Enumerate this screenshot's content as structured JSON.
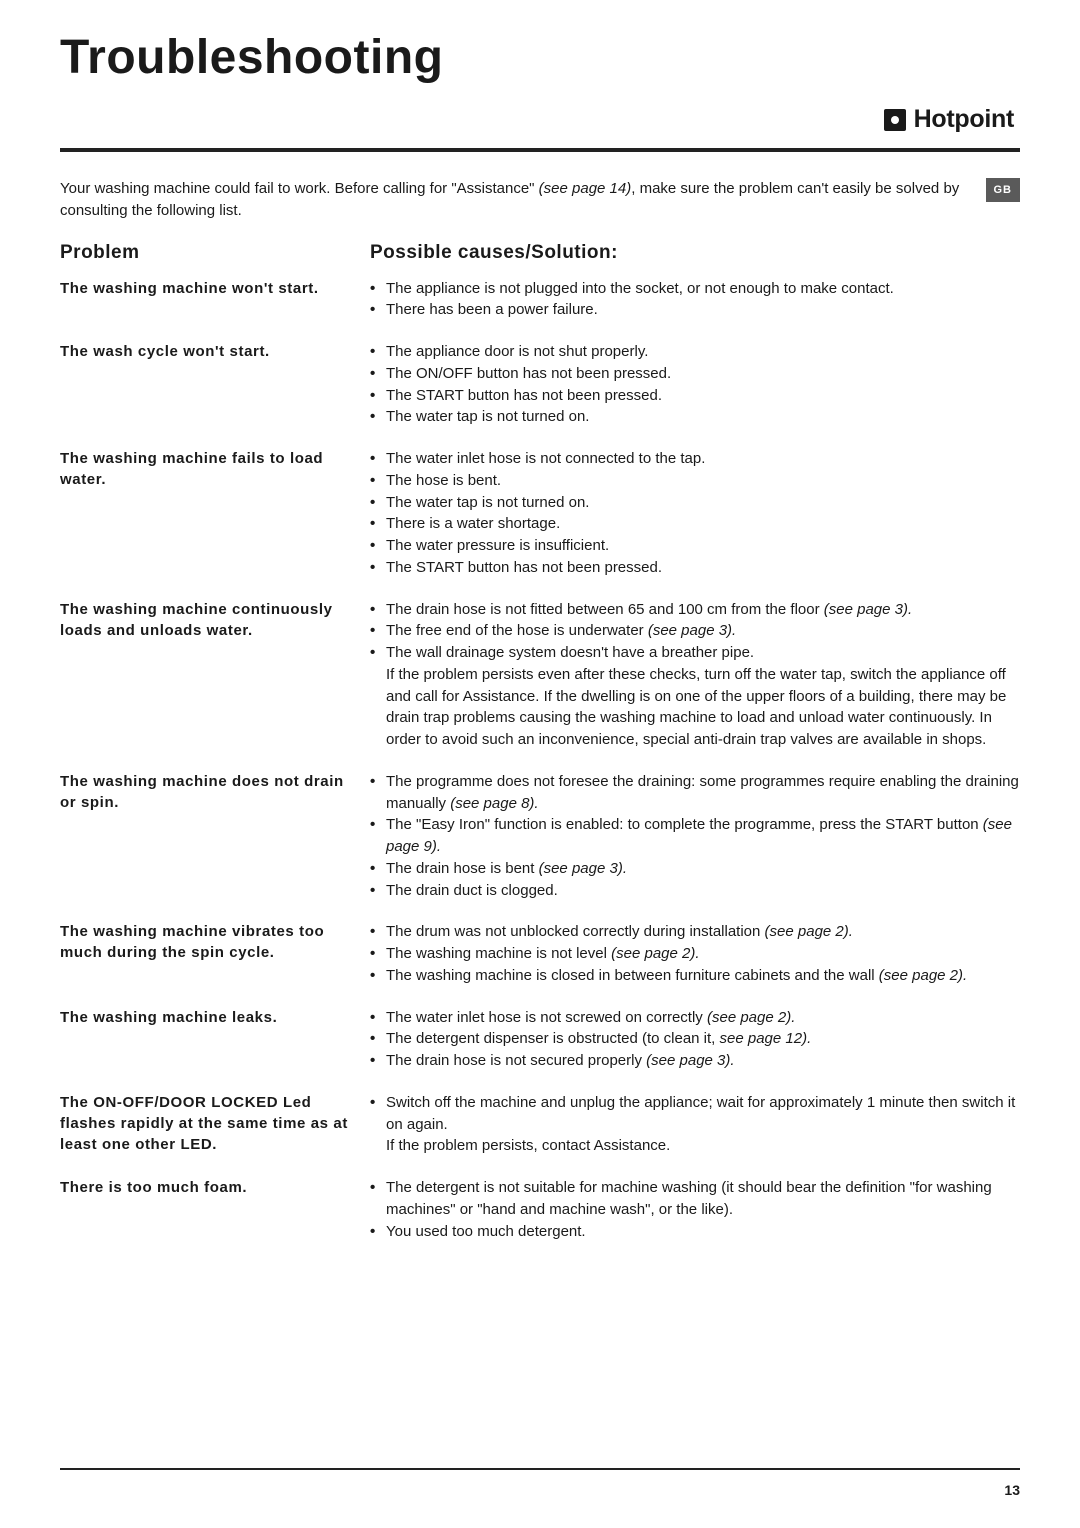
{
  "page": {
    "title": "Troubleshooting",
    "brand": "Hotpoint",
    "lang_badge": "GB",
    "intro_part1": "Your washing machine could fail to work. Before calling for \"Assistance\" ",
    "intro_ref": "(see page 14)",
    "intro_part2": ", make sure the problem can't easily be solved by consulting the following list.",
    "headers": {
      "problem": "Problem",
      "solution": "Possible causes/Solution:"
    },
    "page_number": "13"
  },
  "rows": [
    {
      "problem": "The washing machine won't start.",
      "items": [
        {
          "text": "The appliance is not plugged into the socket, or not enough to make contact."
        },
        {
          "text": "There has been a power failure."
        }
      ]
    },
    {
      "problem": "The wash cycle won't start.",
      "items": [
        {
          "text": "The appliance door is not shut properly."
        },
        {
          "text": "The ON/OFF button has not been pressed."
        },
        {
          "text": "The START button has not been pressed."
        },
        {
          "text": "The water tap is not turned on."
        }
      ]
    },
    {
      "problem": "The washing machine fails to load water.",
      "items": [
        {
          "text": "The water inlet hose is not connected to the tap."
        },
        {
          "text": "The hose is bent."
        },
        {
          "text": "The water tap is not turned on."
        },
        {
          "text": "There is a water shortage."
        },
        {
          "text": "The water pressure is insufficient."
        },
        {
          "text": "The START button has not been pressed."
        }
      ]
    },
    {
      "problem": "The washing machine continuously loads and unloads water.",
      "items": [
        {
          "text": "The drain hose is not fitted between 65 and 100 cm from the floor ",
          "ref": "(see page 3)."
        },
        {
          "text": "The free end of the hose is underwater ",
          "ref": "(see page 3)."
        },
        {
          "text": "The wall drainage system doesn't have a breather pipe."
        }
      ],
      "note": "If the problem persists even after these checks, turn off the water tap, switch the appliance off and call for Assistance. If the dwelling is on one of the upper floors of a building, there may be drain trap problems causing the washing machine to load and unload water continuously. In order to avoid such an inconvenience, special anti-drain trap valves are available in shops."
    },
    {
      "problem": "The washing machine does not drain or spin.",
      "items": [
        {
          "text": "The programme does not foresee the draining: some programmes require enabling the draining manually ",
          "ref": "(see page 8)."
        },
        {
          "text": "The \"Easy Iron\" function is enabled: to complete the programme, press the START button ",
          "ref": "(see page 9)."
        },
        {
          "text": "The drain hose is bent ",
          "ref": "(see page 3)."
        },
        {
          "text": "The drain duct is clogged."
        }
      ]
    },
    {
      "problem": "The washing machine vibrates too much during the spin cycle.",
      "items": [
        {
          "text": "The drum was not unblocked correctly during installation ",
          "ref": "(see page 2)."
        },
        {
          "text": "The washing machine is not level ",
          "ref": "(see page 2)."
        },
        {
          "text": "The washing machine is closed in between furniture cabinets and the wall ",
          "ref": "(see page 2)."
        }
      ]
    },
    {
      "problem": "The washing machine leaks.",
      "items": [
        {
          "text": "The water inlet hose is not screwed on correctly ",
          "ref": "(see page 2)."
        },
        {
          "text": "The detergent dispenser is obstructed (to clean it, ",
          "ref": "see page 12).",
          "noDot": true
        },
        {
          "text": "The drain hose is not secured properly ",
          "ref": "(see page 3)."
        }
      ]
    },
    {
      "problem": "The ON-OFF/DOOR LOCKED Led flashes rapidly at the same time as at least one other LED.",
      "items": [
        {
          "text": " Switch off the machine and unplug the appliance; wait for approximately 1 minute then switch it on again."
        }
      ],
      "note2": "If the problem persists, contact Assistance."
    },
    {
      "problem": "There is too much foam.",
      "items": [
        {
          "text": "The detergent is not suitable for machine washing (it should bear the definition \"for washing machines\" or \"hand and machine wash\", or the like)."
        },
        {
          "text": "You used too much detergent."
        }
      ]
    }
  ]
}
